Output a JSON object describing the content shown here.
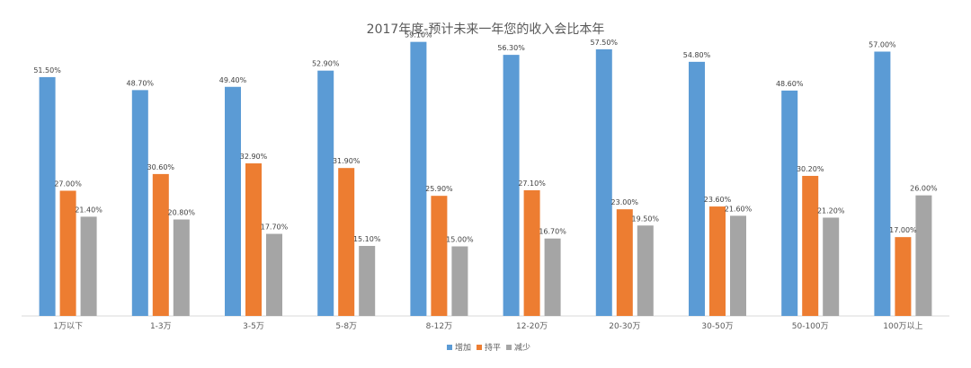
{
  "chart_data": {
    "type": "bar",
    "title": "2017年度-预计未来一年您的收入会比本年",
    "categories": [
      "1万以下",
      "1-3万",
      "3-5万",
      "5-8万",
      "8-12万",
      "12-20万",
      "20-30万",
      "30-50万",
      "50-100万",
      "100万以上"
    ],
    "series": [
      {
        "name": "增加",
        "color": "#5B9BD5",
        "values": [
          51.5,
          48.7,
          49.4,
          52.9,
          59.1,
          56.3,
          57.5,
          54.8,
          48.6,
          57.0
        ],
        "labels": [
          "51.50%",
          "48.70%",
          "49.40%",
          "52.90%",
          "59.10%",
          "56.30%",
          "57.50%",
          "54.80%",
          "48.60%",
          "57.00%"
        ]
      },
      {
        "name": "持平",
        "color": "#ED7D31",
        "values": [
          27.0,
          30.6,
          32.9,
          31.9,
          25.9,
          27.1,
          23.0,
          23.6,
          30.2,
          17.0
        ],
        "labels": [
          "27.00%",
          "30.60%",
          "32.90%",
          "31.90%",
          "25.90%",
          "27.10%",
          "23.00%",
          "23.60%",
          "30.20%",
          "17.00%"
        ]
      },
      {
        "name": "减少",
        "color": "#A5A5A5",
        "values": [
          21.4,
          20.8,
          17.7,
          15.1,
          15.0,
          16.7,
          19.5,
          21.6,
          21.2,
          26.0
        ],
        "labels": [
          "21.40%",
          "20.80%",
          "17.70%",
          "15.10%",
          "15.00%",
          "16.70%",
          "19.50%",
          "21.60%",
          "21.20%",
          "26.00%"
        ]
      }
    ],
    "ylim": [
      0,
      60
    ],
    "grid": false,
    "legend": "bottom"
  }
}
